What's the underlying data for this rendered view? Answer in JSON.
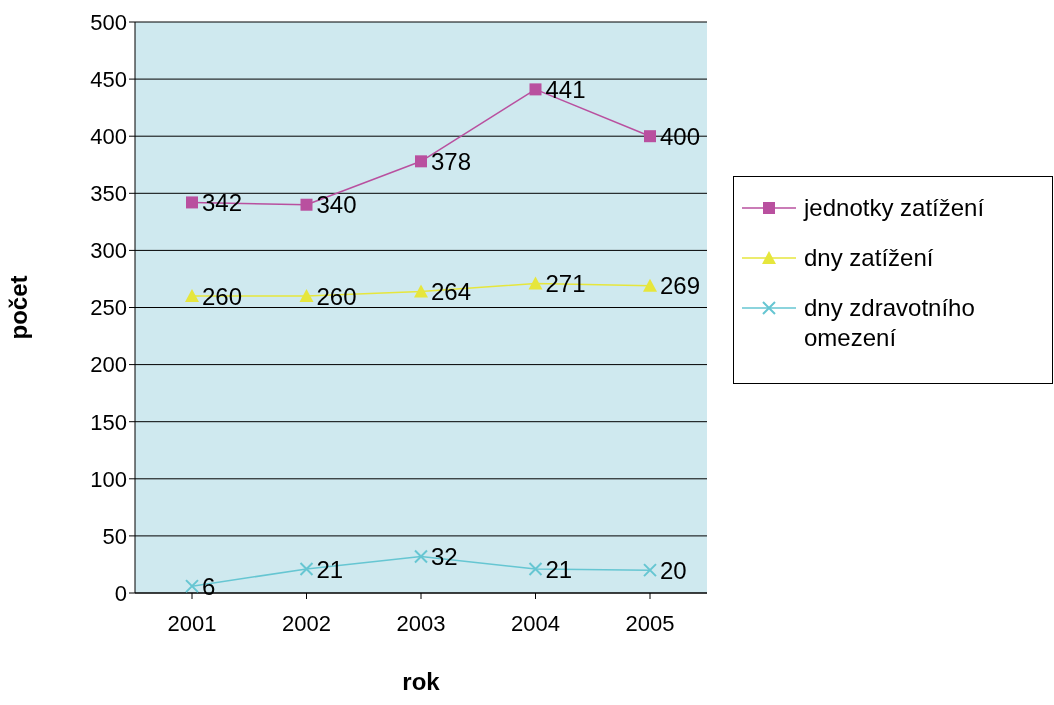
{
  "chart_data": {
    "type": "line",
    "xlabel": "rok",
    "ylabel": "počet",
    "categories": [
      "2001",
      "2002",
      "2003",
      "2004",
      "2005"
    ],
    "series": [
      {
        "name": "jednotky zatížení",
        "color": "#b9509f",
        "marker": "square",
        "values": [
          342,
          340,
          378,
          441,
          400
        ]
      },
      {
        "name": "dny zatížení",
        "color": "#e6e63c",
        "marker": "triangle",
        "values": [
          260,
          260,
          264,
          271,
          269
        ]
      },
      {
        "name": "dny zdravotního omezení",
        "color": "#66c6d2",
        "marker": "cross",
        "values": [
          6,
          21,
          32,
          21,
          20
        ]
      }
    ],
    "ylim": [
      0,
      500
    ],
    "yticks": [
      0,
      50,
      100,
      150,
      200,
      250,
      300,
      350,
      400,
      450,
      500
    ],
    "grid": "y",
    "legend": "right",
    "data_labels": true
  }
}
